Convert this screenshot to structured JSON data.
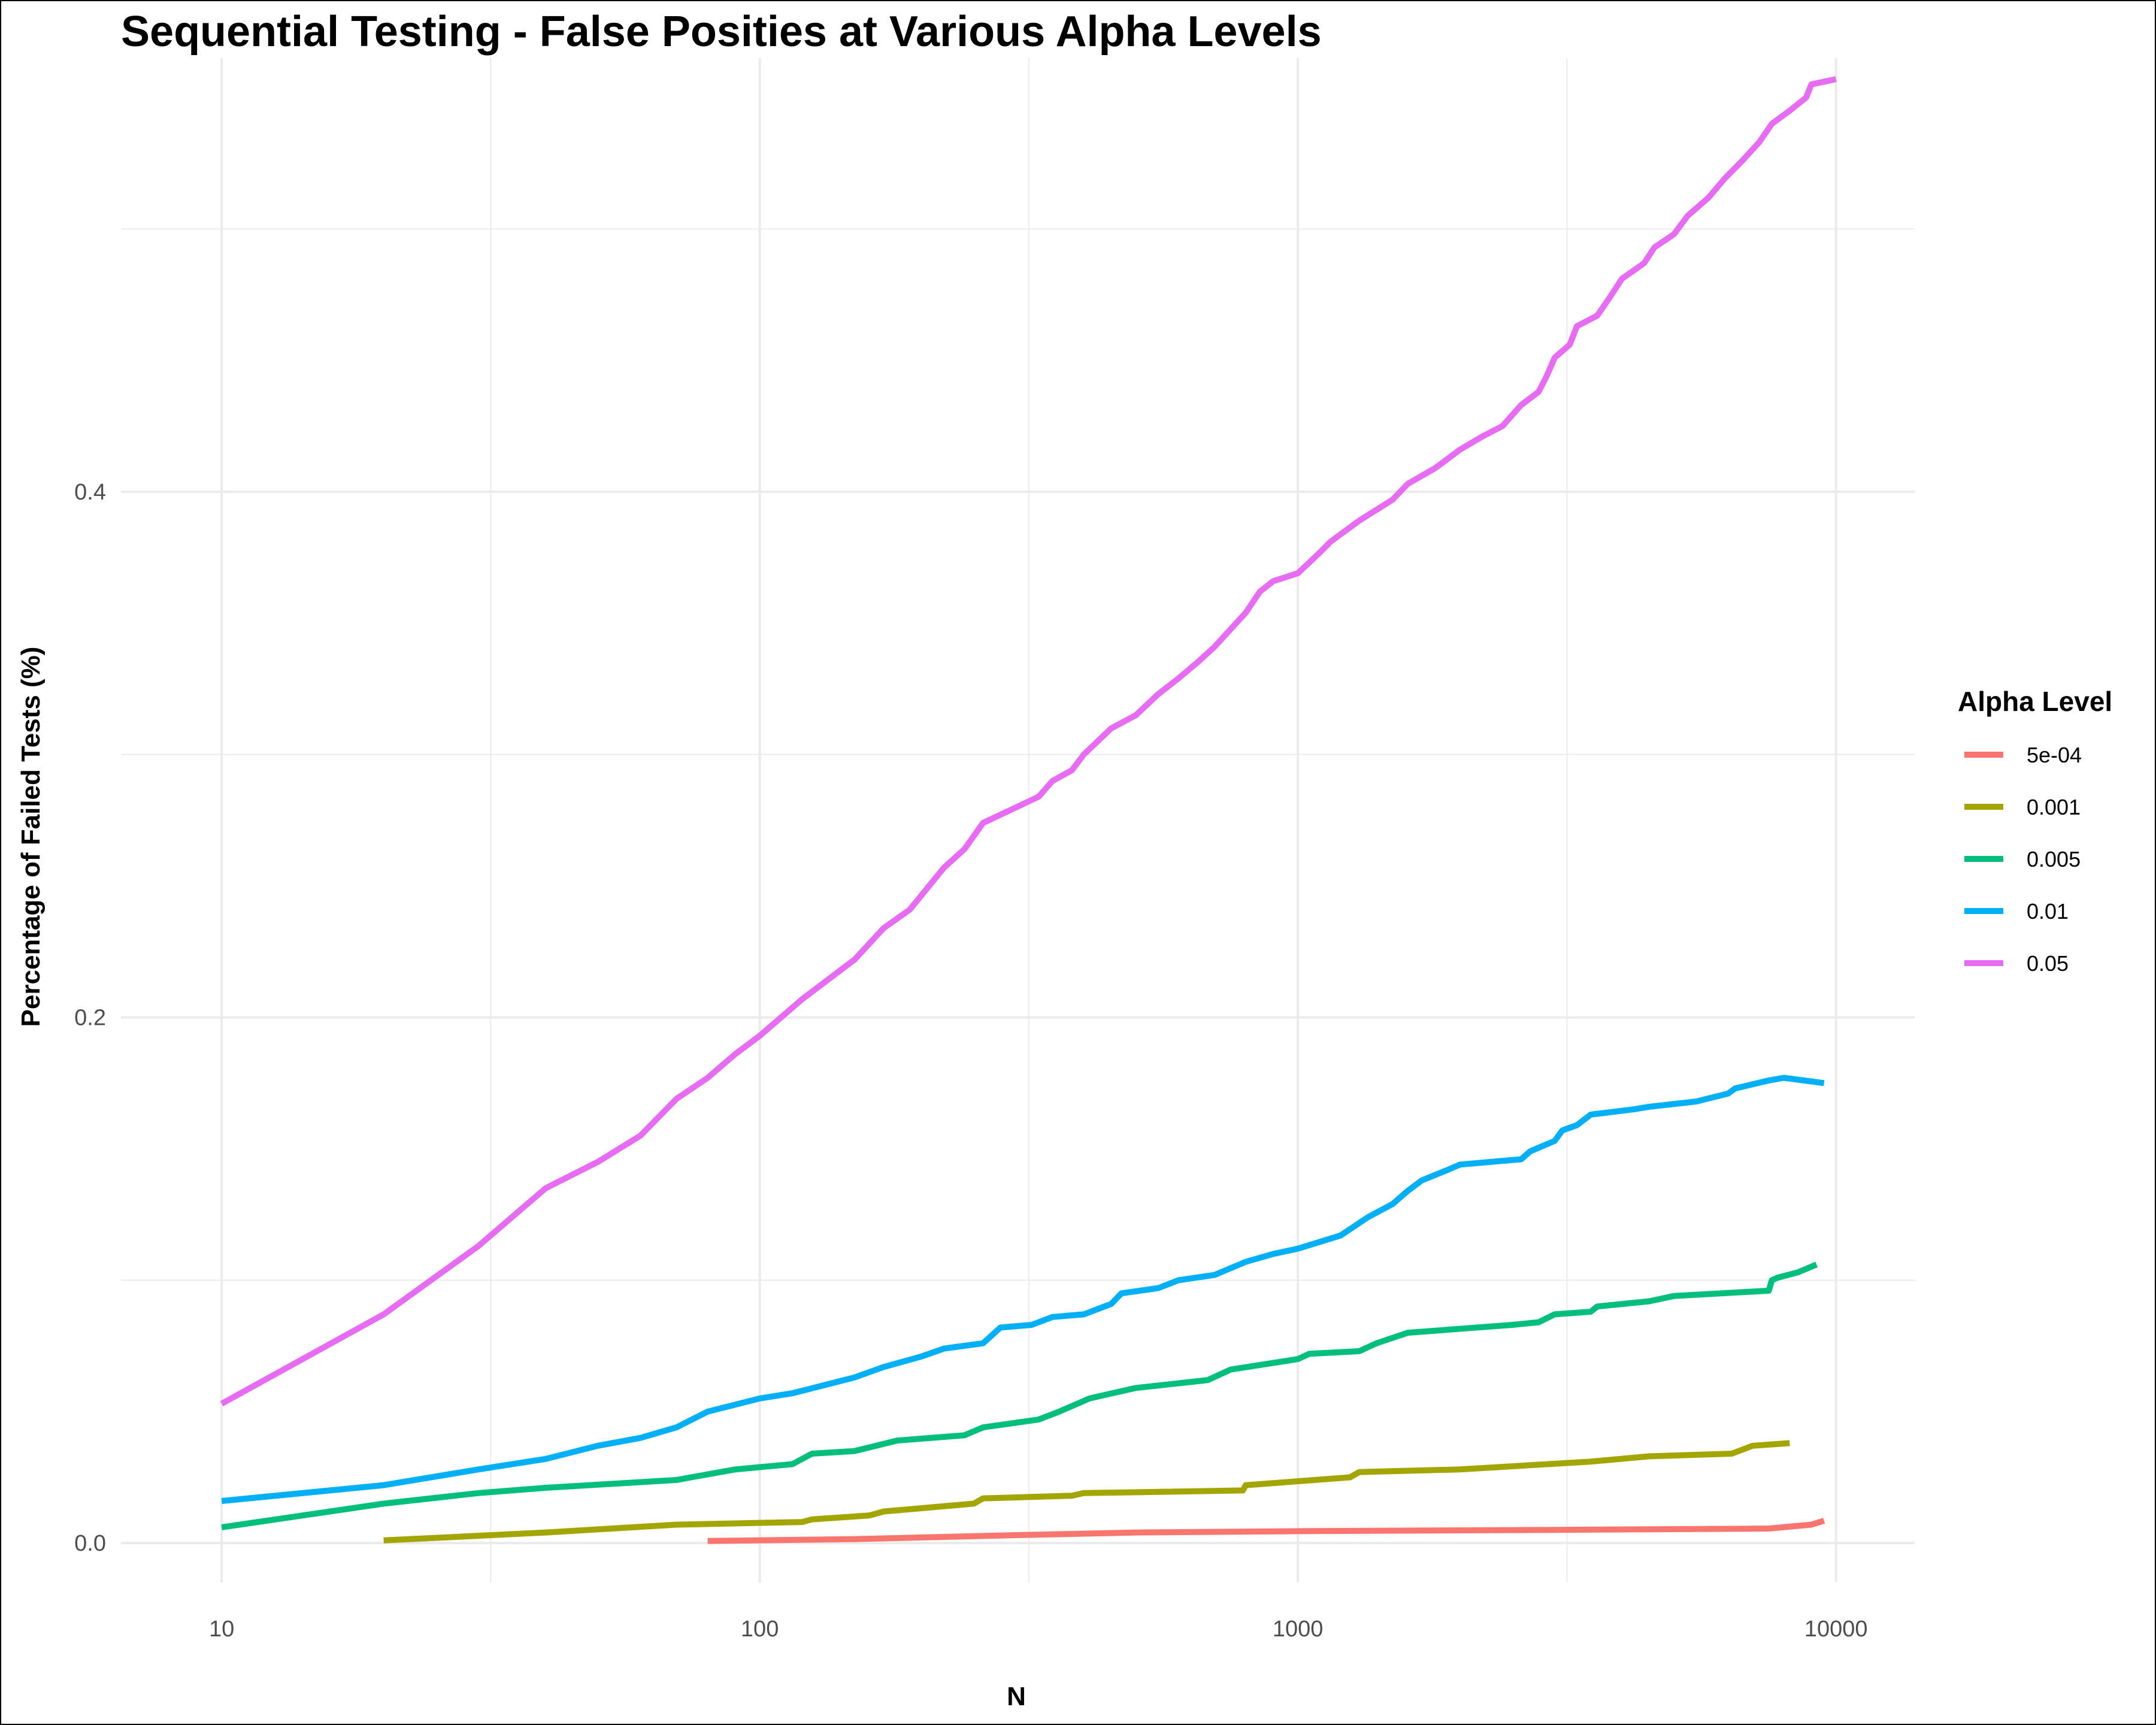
{
  "chart_data": {
    "type": "line",
    "title": "Sequential Testing - False Posities at Various Alpha Levels",
    "xlabel": "N",
    "ylabel": "Percentage of Failed Tests (%)",
    "x_scale": "log10",
    "xlim": [
      6.5,
      14000
    ],
    "ylim": [
      -0.015,
      0.565
    ],
    "x_ticks": [
      10,
      100,
      1000,
      10000
    ],
    "x_tick_labels": [
      "10",
      "100",
      "1000",
      "10000"
    ],
    "y_ticks": [
      0.0,
      0.2,
      0.4
    ],
    "y_tick_labels": [
      "0.0",
      "0.2",
      "0.4"
    ],
    "grid": true,
    "legend": {
      "title": "Alpha Level",
      "position": "right"
    },
    "series": [
      {
        "name": "5e-04",
        "color": "#F8766D",
        "points": [
          [
            80,
            0.0008
          ],
          [
            150,
            0.0015
          ],
          [
            300,
            0.003
          ],
          [
            500,
            0.004
          ],
          [
            1000,
            0.0045
          ],
          [
            3000,
            0.005
          ],
          [
            7500,
            0.0055
          ],
          [
            9000,
            0.007
          ],
          [
            9500,
            0.0085
          ]
        ]
      },
      {
        "name": "0.001",
        "color": "#A3A500",
        "points": [
          [
            20,
            0.001
          ],
          [
            40,
            0.004
          ],
          [
            70,
            0.007
          ],
          [
            120,
            0.008
          ],
          [
            125,
            0.009
          ],
          [
            160,
            0.0105
          ],
          [
            170,
            0.012
          ],
          [
            250,
            0.015
          ],
          [
            260,
            0.017
          ],
          [
            380,
            0.018
          ],
          [
            400,
            0.019
          ],
          [
            790,
            0.02
          ],
          [
            800,
            0.022
          ],
          [
            1250,
            0.025
          ],
          [
            1300,
            0.027
          ],
          [
            2000,
            0.028
          ],
          [
            3500,
            0.031
          ],
          [
            4500,
            0.033
          ],
          [
            6400,
            0.034
          ],
          [
            7000,
            0.037
          ],
          [
            8200,
            0.038
          ]
        ]
      },
      {
        "name": "0.005",
        "color": "#00BF7D",
        "points": [
          [
            10,
            0.006
          ],
          [
            20,
            0.015
          ],
          [
            30,
            0.019
          ],
          [
            40,
            0.021
          ],
          [
            70,
            0.024
          ],
          [
            90,
            0.028
          ],
          [
            115,
            0.03
          ],
          [
            125,
            0.034
          ],
          [
            150,
            0.035
          ],
          [
            180,
            0.039
          ],
          [
            240,
            0.041
          ],
          [
            260,
            0.044
          ],
          [
            330,
            0.047
          ],
          [
            360,
            0.05
          ],
          [
            410,
            0.055
          ],
          [
            500,
            0.059
          ],
          [
            680,
            0.062
          ],
          [
            750,
            0.066
          ],
          [
            1000,
            0.07
          ],
          [
            1050,
            0.072
          ],
          [
            1300,
            0.073
          ],
          [
            1400,
            0.076
          ],
          [
            1600,
            0.08
          ],
          [
            2500,
            0.083
          ],
          [
            2800,
            0.084
          ],
          [
            3000,
            0.087
          ],
          [
            3500,
            0.088
          ],
          [
            3600,
            0.09
          ],
          [
            4500,
            0.092
          ],
          [
            5000,
            0.094
          ],
          [
            7500,
            0.096
          ],
          [
            7600,
            0.1
          ],
          [
            7800,
            0.101
          ],
          [
            8500,
            0.103
          ],
          [
            9200,
            0.106
          ]
        ]
      },
      {
        "name": "0.01",
        "color": "#00B0F6",
        "points": [
          [
            10,
            0.016
          ],
          [
            20,
            0.022
          ],
          [
            30,
            0.028
          ],
          [
            40,
            0.032
          ],
          [
            50,
            0.037
          ],
          [
            60,
            0.04
          ],
          [
            70,
            0.044
          ],
          [
            80,
            0.05
          ],
          [
            100,
            0.055
          ],
          [
            115,
            0.057
          ],
          [
            150,
            0.063
          ],
          [
            170,
            0.067
          ],
          [
            200,
            0.071
          ],
          [
            220,
            0.074
          ],
          [
            260,
            0.076
          ],
          [
            280,
            0.082
          ],
          [
            320,
            0.083
          ],
          [
            350,
            0.086
          ],
          [
            400,
            0.087
          ],
          [
            450,
            0.091
          ],
          [
            470,
            0.095
          ],
          [
            550,
            0.097
          ],
          [
            600,
            0.1
          ],
          [
            700,
            0.102
          ],
          [
            800,
            0.107
          ],
          [
            900,
            0.11
          ],
          [
            1000,
            0.112
          ],
          [
            1200,
            0.117
          ],
          [
            1350,
            0.124
          ],
          [
            1500,
            0.129
          ],
          [
            1600,
            0.134
          ],
          [
            1700,
            0.138
          ],
          [
            1900,
            0.142
          ],
          [
            2000,
            0.144
          ],
          [
            2600,
            0.146
          ],
          [
            2700,
            0.149
          ],
          [
            3000,
            0.153
          ],
          [
            3100,
            0.157
          ],
          [
            3300,
            0.159
          ],
          [
            3400,
            0.161
          ],
          [
            3500,
            0.163
          ],
          [
            4200,
            0.165
          ],
          [
            4500,
            0.166
          ],
          [
            5500,
            0.168
          ],
          [
            6300,
            0.171
          ],
          [
            6500,
            0.173
          ],
          [
            7500,
            0.176
          ],
          [
            8000,
            0.177
          ],
          [
            9500,
            0.175
          ]
        ]
      },
      {
        "name": "0.05",
        "color": "#E76BF3",
        "points": [
          [
            10,
            0.053
          ],
          [
            20,
            0.087
          ],
          [
            30,
            0.113
          ],
          [
            40,
            0.135
          ],
          [
            50,
            0.145
          ],
          [
            60,
            0.155
          ],
          [
            70,
            0.169
          ],
          [
            80,
            0.177
          ],
          [
            90,
            0.186
          ],
          [
            100,
            0.193
          ],
          [
            120,
            0.207
          ],
          [
            150,
            0.222
          ],
          [
            170,
            0.234
          ],
          [
            190,
            0.241
          ],
          [
            220,
            0.257
          ],
          [
            240,
            0.264
          ],
          [
            260,
            0.274
          ],
          [
            300,
            0.28
          ],
          [
            330,
            0.284
          ],
          [
            350,
            0.29
          ],
          [
            380,
            0.294
          ],
          [
            400,
            0.3
          ],
          [
            450,
            0.31
          ],
          [
            500,
            0.315
          ],
          [
            550,
            0.323
          ],
          [
            600,
            0.329
          ],
          [
            650,
            0.335
          ],
          [
            700,
            0.341
          ],
          [
            800,
            0.354
          ],
          [
            850,
            0.362
          ],
          [
            900,
            0.366
          ],
          [
            1000,
            0.369
          ],
          [
            1100,
            0.377
          ],
          [
            1150,
            0.381
          ],
          [
            1300,
            0.389
          ],
          [
            1500,
            0.397
          ],
          [
            1600,
            0.403
          ],
          [
            1800,
            0.409
          ],
          [
            2000,
            0.416
          ],
          [
            2200,
            0.421
          ],
          [
            2400,
            0.425
          ],
          [
            2600,
            0.433
          ],
          [
            2800,
            0.438
          ],
          [
            2900,
            0.444
          ],
          [
            3000,
            0.451
          ],
          [
            3200,
            0.456
          ],
          [
            3300,
            0.463
          ],
          [
            3600,
            0.467
          ],
          [
            3800,
            0.474
          ],
          [
            4000,
            0.481
          ],
          [
            4400,
            0.487
          ],
          [
            4600,
            0.493
          ],
          [
            5000,
            0.498
          ],
          [
            5300,
            0.505
          ],
          [
            5800,
            0.512
          ],
          [
            6200,
            0.519
          ],
          [
            6700,
            0.526
          ],
          [
            7200,
            0.533
          ],
          [
            7600,
            0.54
          ],
          [
            8200,
            0.545
          ],
          [
            8800,
            0.55
          ],
          [
            9000,
            0.555
          ],
          [
            10000,
            0.557
          ]
        ]
      }
    ]
  }
}
